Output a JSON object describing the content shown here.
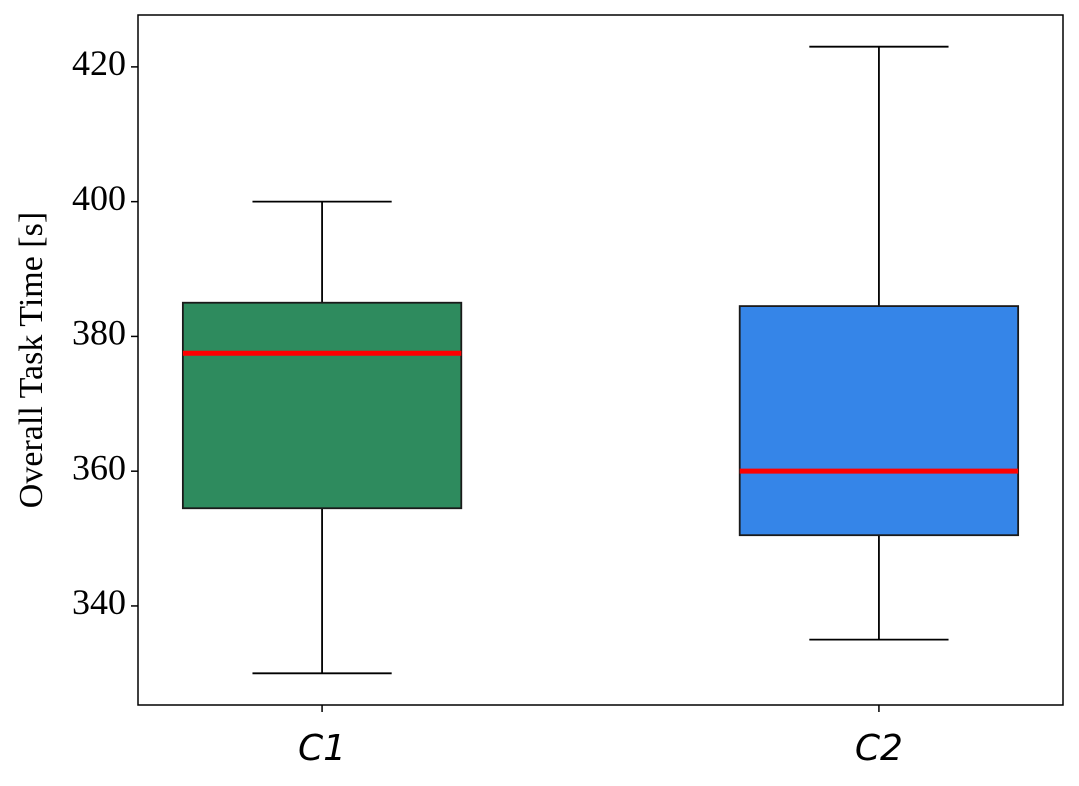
{
  "chart_data": {
    "type": "box",
    "ylabel": "Overall Task Time [s]",
    "categories": [
      "C1",
      "C2"
    ],
    "colors": [
      "#2e8b5e",
      "#3585e8"
    ],
    "median_color": "#ff0000",
    "whislo": [
      330,
      335
    ],
    "q1": [
      354.5,
      350.5
    ],
    "median": [
      377.5,
      360
    ],
    "q3": [
      385,
      384.5
    ],
    "whishi": [
      400,
      423
    ],
    "ylim": [
      325.3,
      427.7
    ],
    "yticks": [
      340,
      360,
      380,
      400,
      420
    ]
  }
}
